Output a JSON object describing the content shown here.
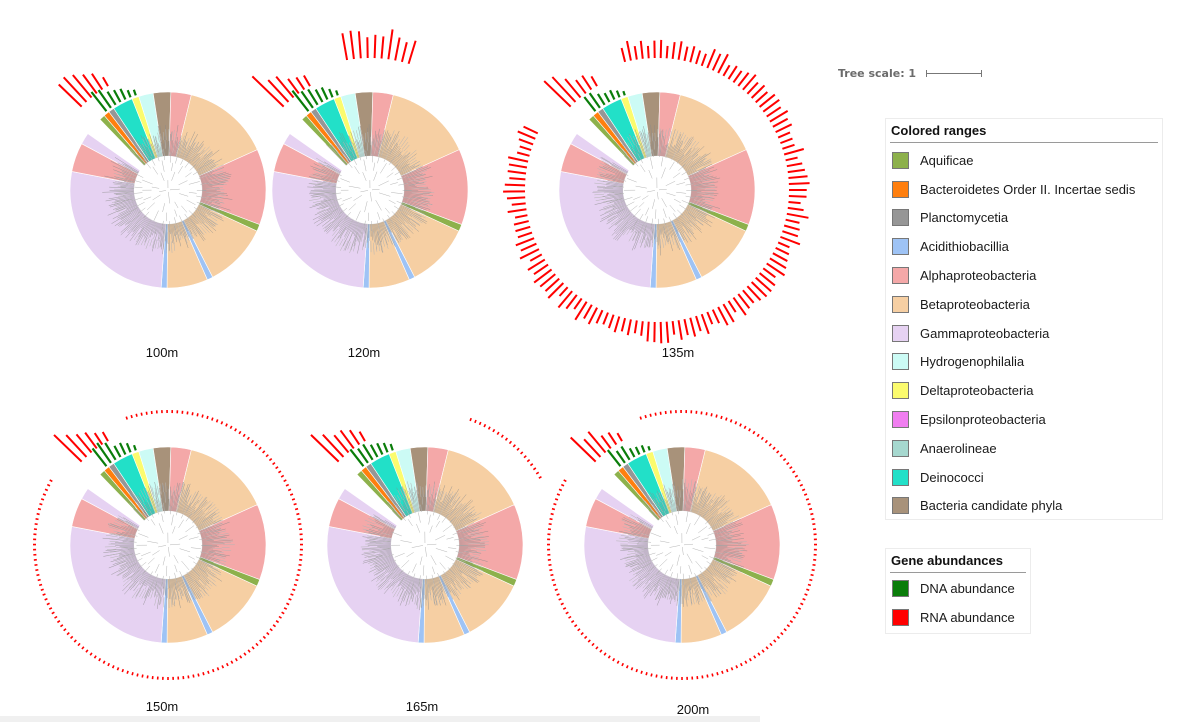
{
  "panels": [
    {
      "label": "100m"
    },
    {
      "label": "120m"
    },
    {
      "label": "135m"
    },
    {
      "label": "150m"
    },
    {
      "label": "165m"
    },
    {
      "label": "200m"
    }
  ],
  "tree_scale": {
    "label": "Tree scale: 1"
  },
  "colored_ranges": {
    "title": "Colored ranges",
    "items": [
      {
        "label": "Aquificae",
        "color": "#8db14c"
      },
      {
        "label": "Bacteroidetes Order II. Incertae sedis",
        "color": "#ff7f0e"
      },
      {
        "label": "Planctomycetia",
        "color": "#969696"
      },
      {
        "label": "Acidithiobacillia",
        "color": "#9ec3f5"
      },
      {
        "label": "Alphaproteobacteria",
        "color": "#f4a8a8"
      },
      {
        "label": "Betaproteobacteria",
        "color": "#f6cfa3"
      },
      {
        "label": "Gammaproteobacteria",
        "color": "#e6d2f2"
      },
      {
        "label": "Hydrogenophilalia",
        "color": "#ccfbf5"
      },
      {
        "label": "Deltaproteobacteria",
        "color": "#fbfb6e"
      },
      {
        "label": "Epsilonproteobacteria",
        "color": "#f07ef0"
      },
      {
        "label": "Anaerolineae",
        "color": "#a6d8cf"
      },
      {
        "label": "Deinococci",
        "color": "#22e0c8"
      },
      {
        "label": "Bacteria candidate phyla",
        "color": "#a8927a"
      }
    ]
  },
  "gene_abundances": {
    "title": "Gene abundances",
    "items": [
      {
        "label": "DNA abundance",
        "color": "#0a7d0a"
      },
      {
        "label": "RNA abundance",
        "color": "#ff0000"
      }
    ]
  },
  "ring_segments": [
    {
      "clade": "Aquificae",
      "fraction": 0.01,
      "color": "#8db14c"
    },
    {
      "clade": "Bacteroidetes Order II. Incertae sedis",
      "fraction": 0.01,
      "color": "#ff7f0e"
    },
    {
      "clade": "Planctomycetia",
      "fraction": 0.01,
      "color": "#969696"
    },
    {
      "clade": "Deinococci",
      "fraction": 0.035,
      "color": "#22e0c8"
    },
    {
      "clade": "Deltaproteobacteria",
      "fraction": 0.012,
      "color": "#fbfb6e"
    },
    {
      "clade": "Hydrogenophilalia",
      "fraction": 0.025,
      "color": "#ccfbf5"
    },
    {
      "clade": "Bacteria candidate phyla",
      "fraction": 0.03,
      "color": "#a8927a"
    },
    {
      "clade": "Alphaproteobacteria",
      "fraction": 0.035,
      "color": "#f4a8a8"
    },
    {
      "clade": "Betaproteobacteria",
      "fraction": 0.15,
      "color": "#f6cfa3"
    },
    {
      "clade": "Alphaproteobacteria",
      "fraction": 0.13,
      "color": "#f4a8a8"
    },
    {
      "clade": "Aquificae",
      "fraction": 0.012,
      "color": "#8db14c"
    },
    {
      "clade": "Betaproteobacteria",
      "fraction": 0.11,
      "color": "#f6cfa3"
    },
    {
      "clade": "Acidithiobacillia",
      "fraction": 0.01,
      "color": "#9ec3f5"
    },
    {
      "clade": "Betaproteobacteria",
      "fraction": 0.07,
      "color": "#f6cfa3"
    },
    {
      "clade": "Acidithiobacillia",
      "fraction": 0.01,
      "color": "#9ec3f5"
    },
    {
      "clade": "Gammaproteobacteria",
      "fraction": 0.28,
      "color": "#e6d2f2"
    },
    {
      "clade": "Alphaproteobacteria",
      "fraction": 0.05,
      "color": "#f4a8a8"
    },
    {
      "clade": "Gammaproteobacteria",
      "fraction": 0.02,
      "color": "#e6d2f2"
    }
  ]
}
